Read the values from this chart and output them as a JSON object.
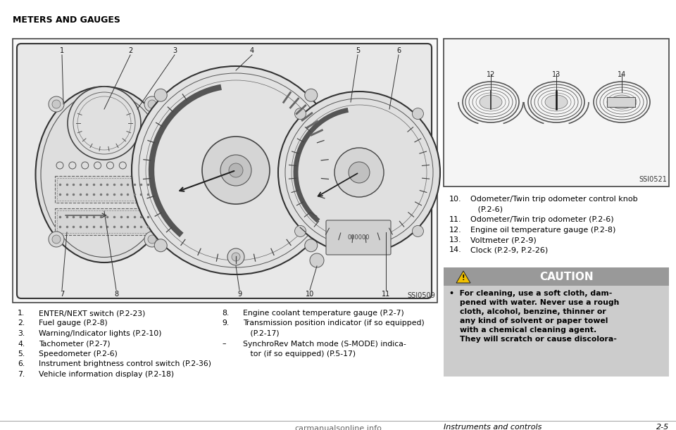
{
  "title": "METERS AND GAUGES",
  "bg_color": "#ffffff",
  "left_items": [
    [
      "1.",
      "ENTER/NEXT switch (P.2-23)"
    ],
    [
      "2.",
      "Fuel gauge (P.2-8)"
    ],
    [
      "3.",
      "Warning/Indicator lights (P.2-10)"
    ],
    [
      "4.",
      "Tachometer (P.2-7)"
    ],
    [
      "5.",
      "Speedometer (P.2-6)"
    ],
    [
      "6.",
      "Instrument brightness control switch (P.2-36)"
    ],
    [
      "7.",
      "Vehicle information display (P.2-18)"
    ]
  ],
  "right_items": [
    [
      "8.",
      "Engine coolant temperature gauge (P.2-7)"
    ],
    [
      "9.",
      "Transmission position indicator (if so equipped)"
    ],
    [
      "",
      "   (P.2-17)"
    ],
    [
      "–",
      "SynchroRev Match mode (S-MODE) indica-"
    ],
    [
      "",
      "   tor (if so equipped) (P.5-17)"
    ]
  ],
  "bottom_left_items": [
    [
      "10.",
      "Odometer/Twin trip odometer control knob"
    ],
    [
      "",
      "   (P.2-6)"
    ],
    [
      "11.",
      "Odometer/Twin trip odometer (P.2-6)"
    ],
    [
      "12.",
      "Engine oil temperature gauge (P.2-8)"
    ],
    [
      "13.",
      "Voltmeter (P.2-9)"
    ],
    [
      "14.",
      "Clock (P.2-9, P.2-26)"
    ]
  ],
  "caution_title": "CAUTION",
  "caution_lines": [
    "•  For cleaning, use a soft cloth, dam-",
    "    pened with water. Never use a rough",
    "    cloth, alcohol, benzine, thinner or",
    "    any kind of solvent or paper towel",
    "    with a chemical cleaning agent.",
    "    They will scratch or cause discolora-"
  ],
  "footer_left": "Instruments and controls",
  "footer_right": "2-5",
  "watermark": "carmanualsonline.info",
  "ssi0509": "SSI0509",
  "ssi0521": "SSI0521"
}
